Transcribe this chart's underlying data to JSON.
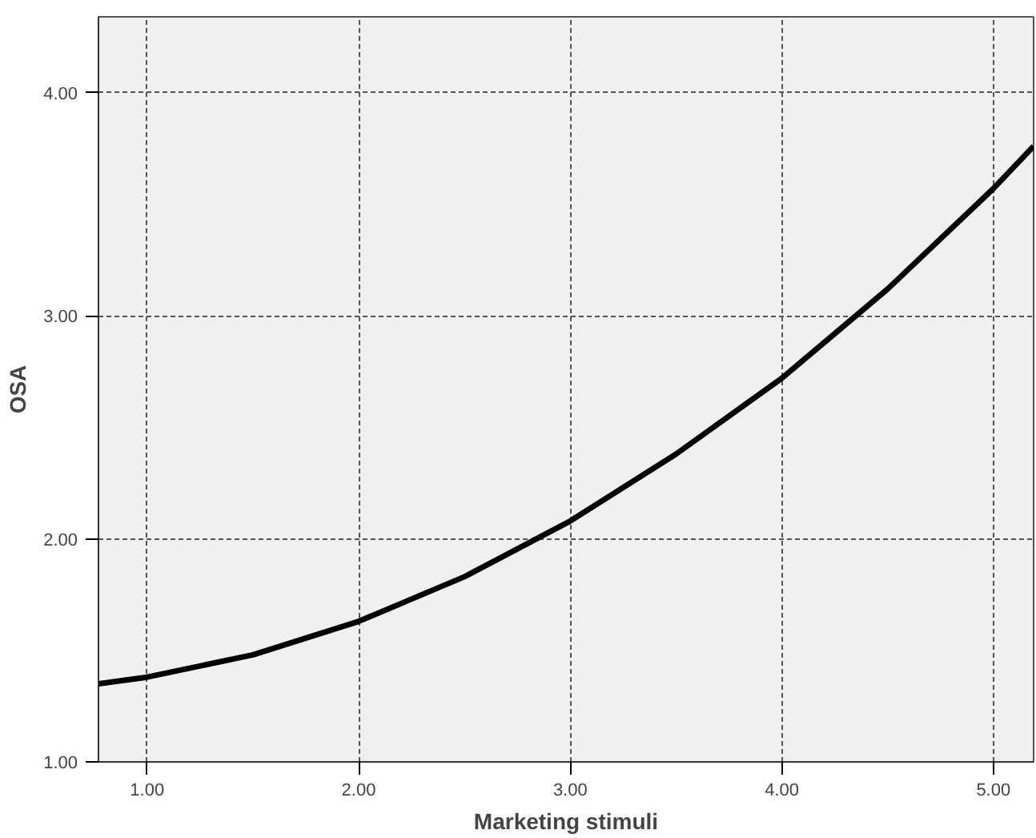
{
  "chart_data": {
    "type": "line",
    "xlabel": "Marketing stimuli",
    "ylabel": "OSA",
    "x": [
      0.77,
      1.0,
      1.5,
      2.0,
      2.5,
      3.0,
      3.5,
      4.0,
      4.5,
      5.0,
      5.19
    ],
    "series": [
      {
        "color": "#000000",
        "values": [
          1.35,
          1.38,
          1.48,
          1.63,
          1.83,
          2.08,
          2.38,
          2.72,
          3.12,
          3.57,
          3.76
        ]
      }
    ],
    "xlim": [
      0.77,
      5.19
    ],
    "ylim": [
      1.0,
      4.34
    ],
    "xticks": [
      {
        "value": 1,
        "label": "1.00"
      },
      {
        "value": 2,
        "label": "2.00"
      },
      {
        "value": 3,
        "label": "3.00"
      },
      {
        "value": 4,
        "label": "4.00"
      },
      {
        "value": 5,
        "label": "5.00"
      }
    ],
    "yticks": [
      {
        "value": 1,
        "label": "1.00"
      },
      {
        "value": 2,
        "label": "2.00"
      },
      {
        "value": 3,
        "label": "3.00"
      },
      {
        "value": 4,
        "label": "4.00"
      }
    ],
    "grid": true,
    "marker": "none",
    "line_style": "solid"
  }
}
